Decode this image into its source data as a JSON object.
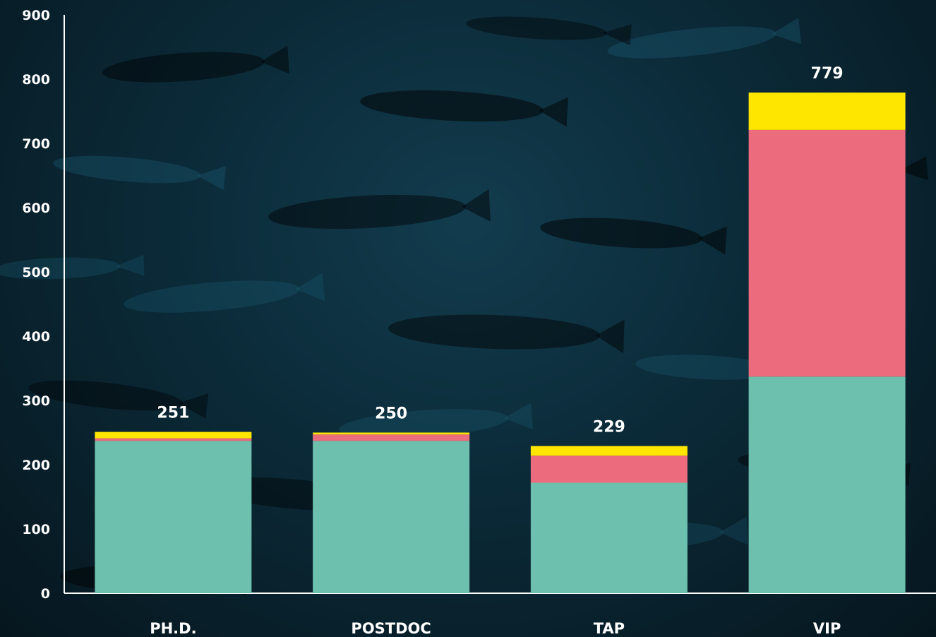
{
  "chart_data": {
    "type": "bar",
    "stacked": true,
    "categories": [
      "PH.D.",
      "POSTDOC",
      "TAP",
      "VIP"
    ],
    "series": [
      {
        "color": "#6cc0ad",
        "values": [
          237,
          237,
          172,
          337
        ]
      },
      {
        "color": "#ec6c7d",
        "values": [
          4,
          10,
          42,
          384
        ]
      },
      {
        "color": "#ffe600",
        "values": [
          10,
          3,
          15,
          58
        ]
      }
    ],
    "totals": [
      "251",
      "250",
      "229",
      "779"
    ],
    "yticks": [
      "0",
      "100",
      "200",
      "300",
      "400",
      "500",
      "600",
      "700",
      "800",
      "900"
    ],
    "ylim": [
      0,
      900
    ],
    "xlabel": "",
    "ylabel": "",
    "title": "",
    "grid": false,
    "legend": "none",
    "background": "dark underwater photograph of a school of fish"
  }
}
